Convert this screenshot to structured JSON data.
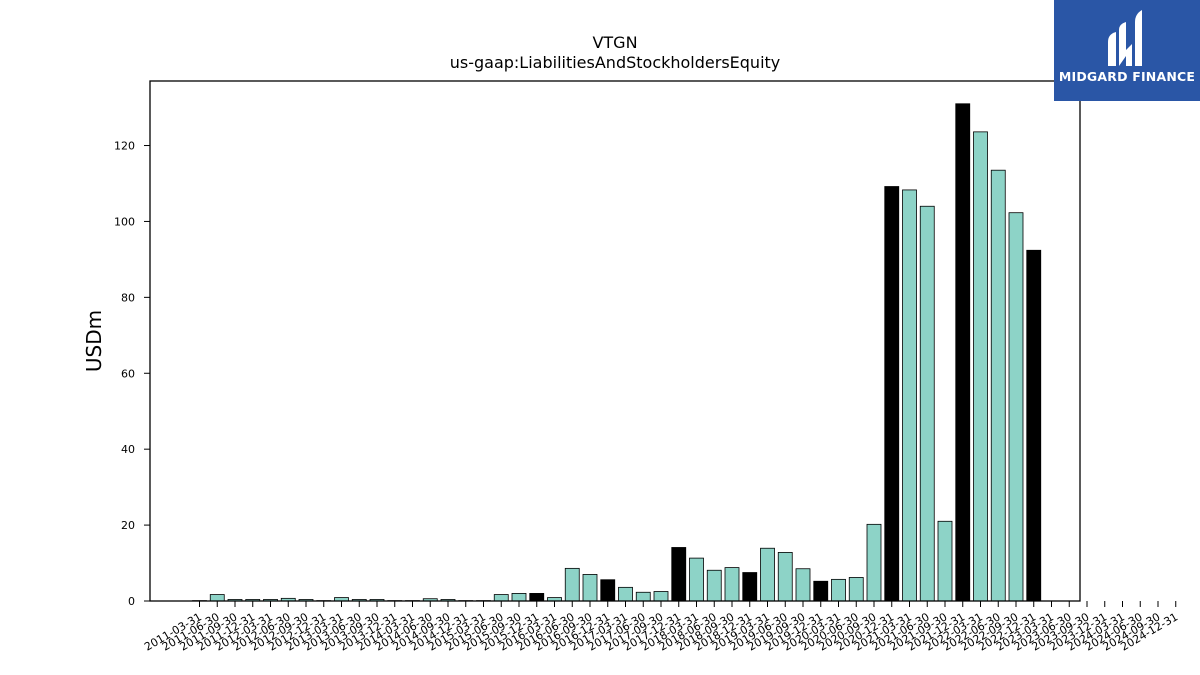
{
  "chart_data": {
    "type": "bar",
    "title": "VTGN",
    "subtitle": "us-gaap:LiabilitiesAndStockholdersEquity",
    "xlabel": "",
    "ylabel": "USDm",
    "ylim": [
      0,
      137
    ],
    "yticks": [
      0,
      20,
      40,
      60,
      80,
      100,
      120
    ],
    "colors": {
      "quarter": "#8dd3c7",
      "fiscal_year_end": "#000000"
    },
    "categories": [
      "2011-03-31",
      "2011-06-30",
      "2011-09-30",
      "2011-12-31",
      "2012-03-31",
      "2012-06-30",
      "2012-09-30",
      "2012-12-31",
      "2013-03-31",
      "2013-06-30",
      "2013-09-30",
      "2013-12-31",
      "2014-03-31",
      "2014-06-30",
      "2014-09-30",
      "2014-12-31",
      "2015-03-31",
      "2015-06-30",
      "2015-09-30",
      "2015-12-31",
      "2016-03-31",
      "2016-06-30",
      "2016-09-30",
      "2016-12-31",
      "2017-03-31",
      "2017-06-30",
      "2017-09-30",
      "2017-12-31",
      "2018-03-31",
      "2018-06-30",
      "2018-09-30",
      "2018-12-31",
      "2019-03-31",
      "2019-06-30",
      "2019-09-30",
      "2019-12-31",
      "2020-03-31",
      "2020-06-30",
      "2020-09-30",
      "2020-12-31",
      "2021-03-31",
      "2021-06-30",
      "2021-09-30",
      "2021-12-31",
      "2022-03-31",
      "2022-06-30",
      "2022-09-30",
      "2022-12-31"
    ],
    "tick_labels": [
      "2011-03-31",
      "2011-06-30",
      "2011-09-30",
      "2011-12-31",
      "2012-03-31",
      "2012-06-30",
      "2012-09-30",
      "2012-12-31",
      "2013-03-31",
      "2013-06-30",
      "2013-09-30",
      "2013-12-31",
      "2014-03-31",
      "2014-06-30",
      "2014-09-30",
      "2014-12-31",
      "2015-03-31",
      "2015-06-30",
      "2015-09-30",
      "2015-12-31",
      "2016-03-31",
      "2016-06-30",
      "2016-09-30",
      "2016-12-31",
      "2017-03-31",
      "2017-06-30",
      "2017-09-30",
      "2017-12-31",
      "2018-03-31",
      "2018-06-30",
      "2018-09-30",
      "2018-12-31",
      "2019-03-31",
      "2019-06-30",
      "2019-09-30",
      "2019-12-31",
      "2020-03-31",
      "2020-06-30",
      "2020-09-30",
      "2020-12-31",
      "2021-03-31",
      "2021-06-30",
      "2021-09-30",
      "2021-12-31",
      "2022-03-31",
      "2022-06-30",
      "2022-09-30",
      "2022-12-31",
      "2023-03-31",
      "2023-06-30",
      "2023-09-30",
      "2023-12-31",
      "2024-03-31",
      "2024-06-30",
      "2024-09-30",
      "2024-12-31"
    ],
    "values": [
      0.1,
      1.7,
      0.4,
      0.4,
      0.4,
      0.7,
      0.4,
      0.1,
      0.9,
      0.4,
      0.4,
      0.1,
      0.1,
      0.6,
      0.4,
      0.1,
      0.1,
      1.7,
      2.0,
      2.0,
      0.9,
      8.6,
      7.0,
      5.6,
      3.6,
      2.3,
      2.5,
      14.1,
      11.3,
      8.1,
      8.8,
      7.5,
      13.9,
      12.8,
      8.5,
      5.2,
      5.7,
      6.2,
      20.2,
      109.2,
      108.3,
      104.0,
      21.0,
      131.0,
      123.6,
      113.5,
      102.3,
      92.4
    ],
    "fiscal_year_end": [
      false,
      false,
      false,
      false,
      false,
      false,
      false,
      false,
      false,
      false,
      false,
      false,
      false,
      false,
      false,
      false,
      false,
      false,
      false,
      true,
      false,
      false,
      false,
      true,
      false,
      false,
      false,
      true,
      false,
      false,
      false,
      true,
      false,
      false,
      false,
      true,
      false,
      false,
      false,
      true,
      false,
      false,
      false,
      true,
      false,
      false,
      false,
      true
    ]
  },
  "logo": {
    "text": "MIDGARD FINANCE",
    "icon": "midgard-logo-icon"
  }
}
